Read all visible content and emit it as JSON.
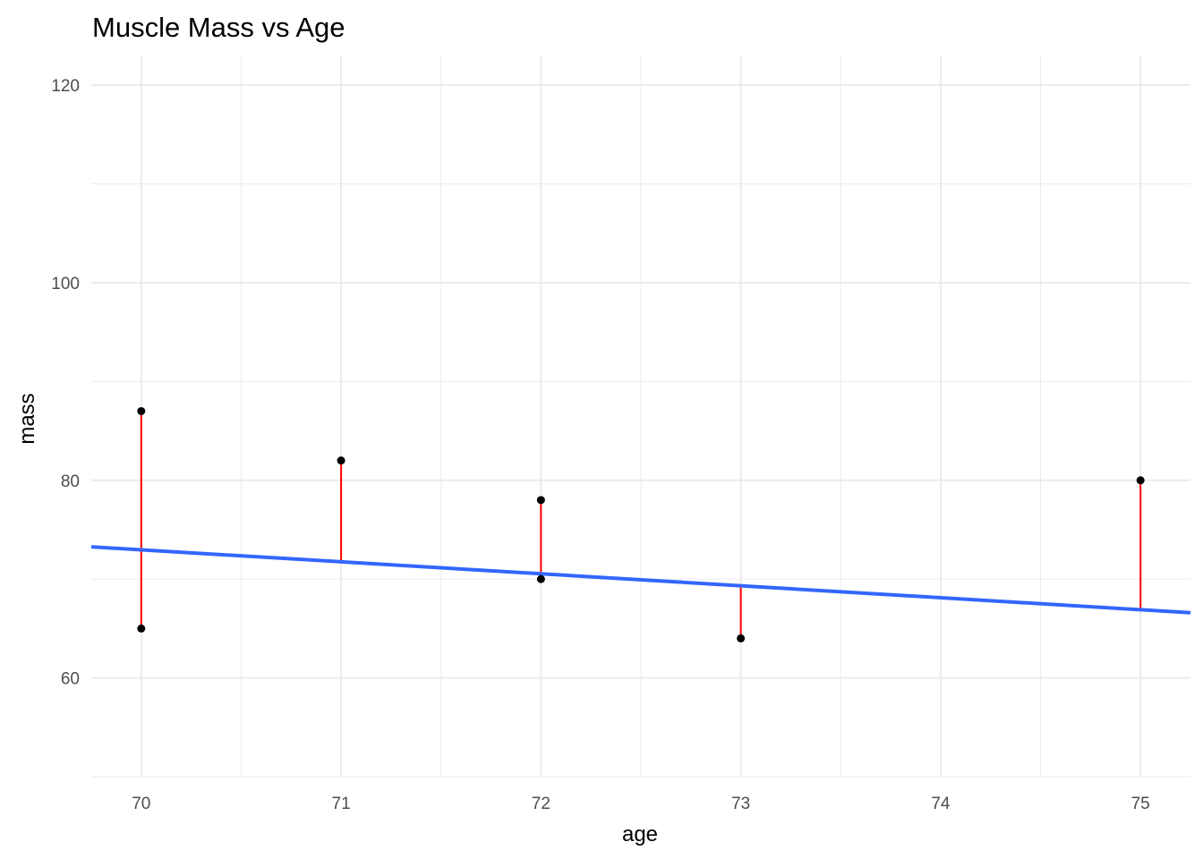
{
  "chart_data": {
    "type": "scatter",
    "title": "Muscle Mass vs Age",
    "xlabel": "age",
    "ylabel": "mass",
    "xlim": [
      69.75,
      75.25
    ],
    "ylim": [
      50,
      123
    ],
    "x_ticks": [
      70,
      71,
      72,
      73,
      74,
      75
    ],
    "x_tick_labels": [
      "70",
      "71",
      "72",
      "73",
      "74",
      "75"
    ],
    "y_ticks": [
      60,
      80,
      100,
      120
    ],
    "y_tick_labels": [
      "60",
      "80",
      "100",
      "120"
    ],
    "grid": true,
    "legend": "none",
    "points": [
      {
        "x": 70,
        "y": 87
      },
      {
        "x": 70,
        "y": 65
      },
      {
        "x": 71,
        "y": 82
      },
      {
        "x": 72,
        "y": 78
      },
      {
        "x": 72,
        "y": 70
      },
      {
        "x": 73,
        "y": 64
      },
      {
        "x": 75,
        "y": 80
      }
    ],
    "fit_line": {
      "type": "linear",
      "intercept": 157.8,
      "slope": -1.212,
      "color": "#3366FF"
    },
    "residual_color": "#FF0000",
    "point_color": "#000000",
    "grid_color": "#EBEBEB"
  }
}
